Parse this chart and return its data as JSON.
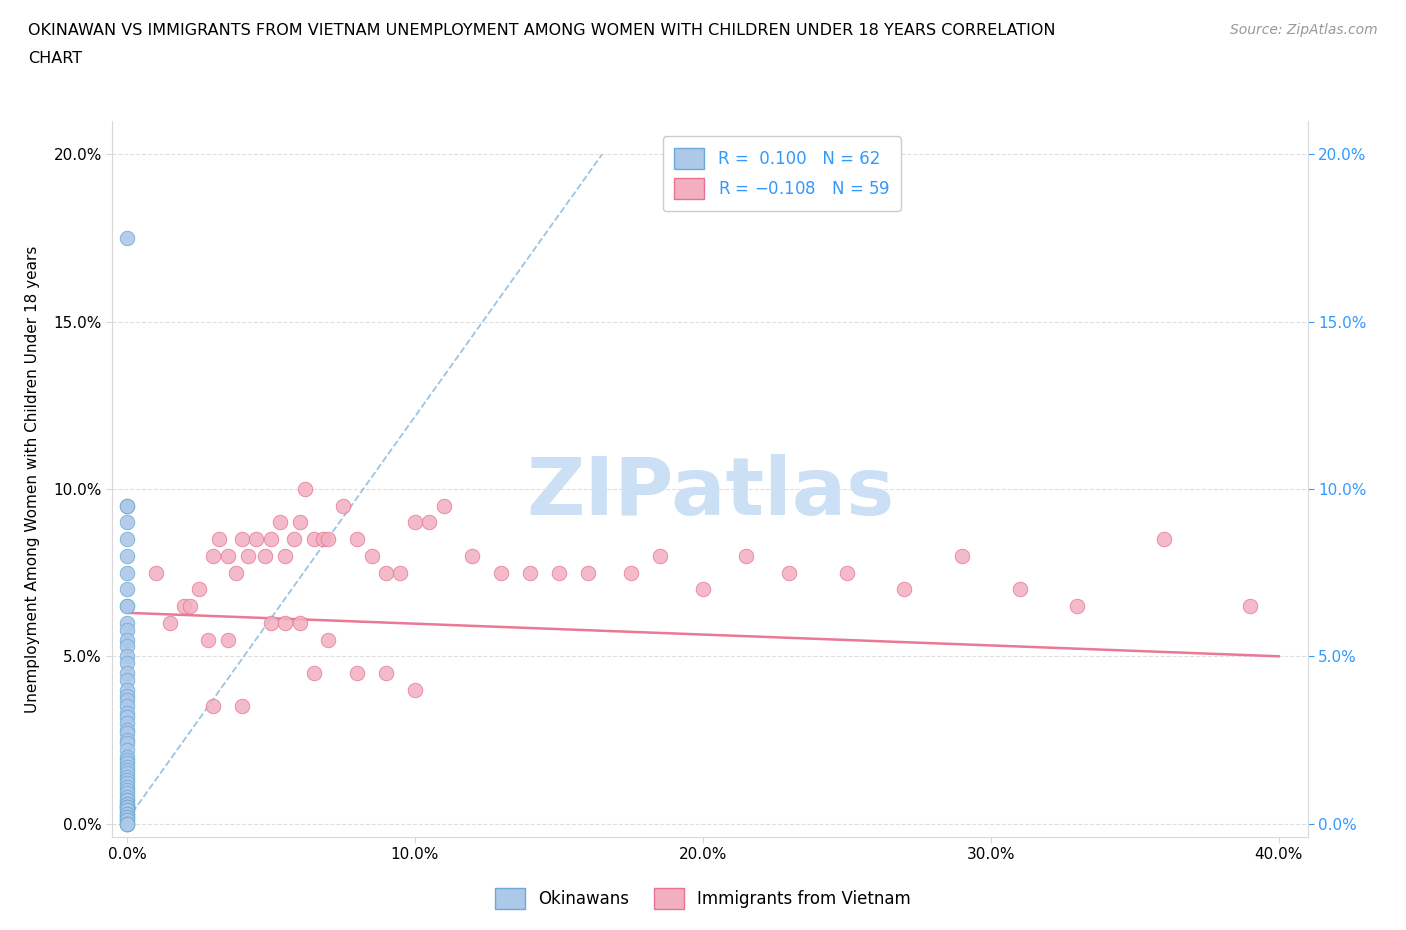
{
  "title_line1": "OKINAWAN VS IMMIGRANTS FROM VIETNAM UNEMPLOYMENT AMONG WOMEN WITH CHILDREN UNDER 18 YEARS CORRELATION",
  "title_line2": "CHART",
  "source": "Source: ZipAtlas.com",
  "ylabel": "Unemployment Among Women with Children Under 18 years",
  "xlabel_ticks": [
    "0.0%",
    "10.0%",
    "20.0%",
    "30.0%",
    "40.0%"
  ],
  "xlabel_vals": [
    0.0,
    0.1,
    0.2,
    0.3,
    0.4
  ],
  "ylabel_ticks": [
    "0.0%",
    "5.0%",
    "10.0%",
    "15.0%",
    "20.0%"
  ],
  "ylabel_vals": [
    0.0,
    0.05,
    0.1,
    0.15,
    0.2
  ],
  "xlim": [
    -0.003,
    0.42
  ],
  "ylim": [
    -0.003,
    0.215
  ],
  "okinawan_R": 0.1,
  "okinawan_N": 62,
  "vietnam_R": -0.108,
  "vietnam_N": 59,
  "okinawan_color": "#adc8e8",
  "vietnam_color": "#f2afc0",
  "okinawan_edge_color": "#6aaad4",
  "vietnam_edge_color": "#e8728f",
  "okinawan_trend_color": "#7ab0d8",
  "vietnam_trend_color": "#e8728f",
  "legend_R_color": "#3399ff",
  "right_tick_color": "#3399ff",
  "watermark_color": "#cce0f5",
  "grid_color": "#d8d8d8",
  "okinawan_x": [
    0.0,
    0.0,
    0.0,
    0.0,
    0.0,
    0.0,
    0.0,
    0.0,
    0.0,
    0.0,
    0.0,
    0.0,
    0.0,
    0.0,
    0.0,
    0.0,
    0.0,
    0.0,
    0.0,
    0.0,
    0.0,
    0.0,
    0.0,
    0.0,
    0.0,
    0.0,
    0.0,
    0.0,
    0.0,
    0.0,
    0.0,
    0.0,
    0.0,
    0.0,
    0.0,
    0.0,
    0.0,
    0.0,
    0.0,
    0.0,
    0.0,
    0.0,
    0.0,
    0.0,
    0.0,
    0.0,
    0.0,
    0.0,
    0.0,
    0.0,
    0.0,
    0.0,
    0.0,
    0.0,
    0.0,
    0.0,
    0.0,
    0.0,
    0.0,
    0.0,
    0.0,
    0.0
  ],
  "okinawan_y": [
    0.175,
    0.095,
    0.095,
    0.09,
    0.085,
    0.08,
    0.075,
    0.07,
    0.065,
    0.065,
    0.06,
    0.058,
    0.055,
    0.053,
    0.05,
    0.048,
    0.045,
    0.043,
    0.04,
    0.038,
    0.037,
    0.035,
    0.033,
    0.032,
    0.03,
    0.028,
    0.027,
    0.025,
    0.024,
    0.022,
    0.02,
    0.019,
    0.018,
    0.017,
    0.016,
    0.015,
    0.014,
    0.013,
    0.012,
    0.011,
    0.01,
    0.009,
    0.008,
    0.007,
    0.007,
    0.006,
    0.006,
    0.005,
    0.005,
    0.005,
    0.004,
    0.004,
    0.003,
    0.003,
    0.002,
    0.002,
    0.001,
    0.001,
    0.0,
    0.0,
    0.0,
    0.0
  ],
  "vietnam_x": [
    0.01,
    0.015,
    0.02,
    0.022,
    0.025,
    0.028,
    0.03,
    0.032,
    0.035,
    0.038,
    0.04,
    0.042,
    0.045,
    0.048,
    0.05,
    0.053,
    0.055,
    0.058,
    0.06,
    0.062,
    0.065,
    0.068,
    0.07,
    0.075,
    0.08,
    0.085,
    0.09,
    0.095,
    0.1,
    0.105,
    0.11,
    0.12,
    0.13,
    0.14,
    0.15,
    0.16,
    0.175,
    0.185,
    0.2,
    0.215,
    0.23,
    0.25,
    0.27,
    0.29,
    0.31,
    0.33,
    0.36,
    0.39,
    0.03,
    0.035,
    0.04,
    0.05,
    0.055,
    0.06,
    0.065,
    0.07,
    0.08,
    0.09,
    0.1
  ],
  "vietnam_y": [
    0.075,
    0.06,
    0.065,
    0.065,
    0.07,
    0.055,
    0.08,
    0.085,
    0.08,
    0.075,
    0.085,
    0.08,
    0.085,
    0.08,
    0.085,
    0.09,
    0.08,
    0.085,
    0.09,
    0.1,
    0.085,
    0.085,
    0.085,
    0.095,
    0.085,
    0.08,
    0.075,
    0.075,
    0.09,
    0.09,
    0.095,
    0.08,
    0.075,
    0.075,
    0.075,
    0.075,
    0.075,
    0.08,
    0.07,
    0.08,
    0.075,
    0.075,
    0.07,
    0.08,
    0.07,
    0.065,
    0.085,
    0.065,
    0.035,
    0.055,
    0.035,
    0.06,
    0.06,
    0.06,
    0.045,
    0.055,
    0.045,
    0.045,
    0.04
  ],
  "oki_trend_x": [
    0.0,
    0.165
  ],
  "oki_trend_y": [
    0.001,
    0.2
  ],
  "viet_trend_x": [
    0.0,
    0.4
  ],
  "viet_trend_y": [
    0.063,
    0.05
  ]
}
